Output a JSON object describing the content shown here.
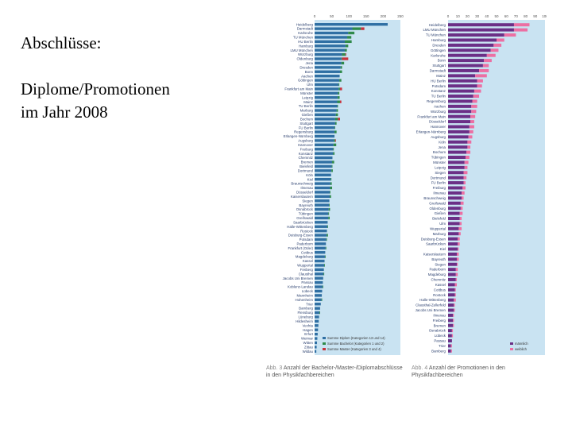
{
  "slide": {
    "title_line1": "Abschlüsse:",
    "title_line2": "Diplome/Promotionen",
    "title_line3": "im Jahr 2008"
  },
  "colors": {
    "panel_bg": "#c9e3f2",
    "diplom": "#2f6fa3",
    "bachelor": "#2f8a4a",
    "master": "#c8323c",
    "maennlich": "#6b2f86",
    "weiblich": "#ec6fa3"
  },
  "chart_data": [
    {
      "type": "bar",
      "orientation": "horizontal",
      "stacked": true,
      "caption_number": "Abb. 3",
      "caption": "Anzahl der Bachelor-/Master-/Diplomabschlüsse in den Physikfachbereichen",
      "xlim": [
        0,
        250
      ],
      "xticks": [
        "0",
        "50",
        "100",
        "150",
        "200",
        "250"
      ],
      "grid": false,
      "legend_position": "bottom-right",
      "series": [
        {
          "name": "Summe Diplom (Kategorien 13 und 14)",
          "values": [
            213,
            110,
            98,
            95,
            88,
            90,
            88,
            80,
            78,
            78,
            76,
            74,
            73,
            72,
            70,
            70,
            68,
            67,
            66,
            66,
            64,
            62,
            60,
            60,
            58,
            58,
            58,
            56,
            55,
            54,
            54,
            52,
            51,
            50,
            49,
            48,
            47,
            46,
            45,
            44,
            44,
            43,
            42,
            41,
            40,
            40,
            38,
            37,
            36,
            35,
            34,
            33,
            32,
            31,
            30,
            29,
            28,
            27,
            26,
            25,
            24,
            23,
            22,
            21,
            20,
            18,
            16,
            14,
            13,
            12,
            11,
            10,
            9,
            8,
            7,
            6,
            5
          ]
        },
        {
          "name": "Summe Bachelor (Kategorien 1 und 2)",
          "values": [
            0,
            25,
            18,
            12,
            20,
            8,
            6,
            10,
            2,
            8,
            4,
            6,
            0,
            6,
            2,
            4,
            4,
            6,
            8,
            2,
            4,
            6,
            8,
            4,
            2,
            6,
            0,
            4,
            8,
            2,
            4,
            0,
            6,
            2,
            4,
            0,
            2,
            4,
            6,
            2,
            4,
            0,
            2,
            4,
            2,
            4,
            0,
            2,
            0,
            4,
            2,
            0,
            2,
            0,
            2,
            0,
            2,
            0,
            2,
            0,
            0,
            2,
            0,
            0,
            2,
            0,
            0,
            2,
            0,
            0,
            0,
            0,
            0,
            0,
            0,
            0,
            0
          ]
        },
        {
          "name": "Summe Master (Kategorien 3 und 4)",
          "values": [
            0,
            10,
            0,
            0,
            0,
            0,
            0,
            2,
            18,
            0,
            0,
            0,
            0,
            0,
            0,
            6,
            0,
            0,
            4,
            0,
            0,
            0,
            6,
            0,
            0,
            0,
            0,
            2,
            0,
            0,
            0,
            0,
            0,
            0,
            0,
            0,
            0,
            0,
            0,
            0,
            0,
            0,
            0,
            0,
            0,
            0,
            0,
            0,
            0,
            0,
            0,
            0,
            0,
            0,
            0,
            0,
            0,
            0,
            0,
            0,
            0,
            0,
            0,
            0,
            0,
            0,
            0,
            0,
            0,
            0,
            0,
            0,
            0,
            0,
            0,
            0,
            0
          ]
        }
      ],
      "legend_entries": [
        "Summe Diplom (Kategorien 13 und 14)",
        "Summe Bachelor (Kategorien 1 und 2)",
        "Summe Master (Kategorien 3 und 4)"
      ],
      "categories": [
        "Heidelberg",
        "Darmstadt",
        "Karlsruhe",
        "TU München",
        "HU Berlin",
        "Hamburg",
        "LMU München",
        "Würzburg",
        "Oldenburg",
        "Jena",
        "Dresden",
        "Bonn",
        "Aachen",
        "Göttingen",
        "Ulm",
        "Frankfurt am Main",
        "Münster",
        "Leipzig",
        "Mainz",
        "TU Berlin",
        "Marburg",
        "Gießen",
        "Bochum",
        "Stuttgart",
        "FU Berlin",
        "Regensburg",
        "Erlangen-Nürnberg",
        "Augsburg",
        "Hannover",
        "Freiburg",
        "Konstanz",
        "Chemnitz",
        "Bremen",
        "Bielefeld",
        "Dortmund",
        "Köln",
        "Kiel",
        "Braunschweig",
        "Ilmenau",
        "Düsseldorf",
        "Kaiserslautern",
        "Siegen",
        "Bayreuth",
        "Osnabrück",
        "Tübingen",
        "Greifswald",
        "Saarbrücken",
        "Halle-Wittenberg",
        "Rostock",
        "Duisburg-Essen",
        "Potsdam",
        "Paderborn",
        "Frankfurt (Oder)",
        "Cottbus",
        "Magdeburg",
        "Kassel",
        "Wuppertal",
        "Freiberg",
        "Clausthal",
        "Jacobs Uni Bremen",
        "Passau",
        "Koblenz-Landau",
        "Lübeck",
        "Mannheim",
        "Hohenheim",
        "Trier",
        "Bamberg",
        "Flensburg",
        "Lüneburg",
        "Hildesheim",
        "Vechta",
        "Hagen",
        "Erfurt",
        "Weimar",
        "Witten",
        "Zittau",
        "Wildau"
      ]
    },
    {
      "type": "bar",
      "orientation": "horizontal",
      "stacked": true,
      "caption_number": "Abb. 4",
      "caption": "Anzahl der Promotionen in den Physikfachbereichen",
      "xlim": [
        0,
        100
      ],
      "xticks": [
        "0",
        "10",
        "20",
        "30",
        "40",
        "50",
        "60",
        "70",
        "80",
        "90",
        "100"
      ],
      "grid": false,
      "legend_position": "bottom-right",
      "series": [
        {
          "name": "männlich",
          "values": [
            68,
            68,
            58,
            50,
            47,
            44,
            40,
            37,
            36,
            32,
            28,
            30,
            30,
            27,
            26,
            25,
            24,
            24,
            23,
            23,
            22,
            22,
            21,
            20,
            20,
            19,
            18,
            17,
            17,
            16,
            16,
            16,
            15,
            14,
            14,
            13,
            13,
            12,
            12,
            12,
            11,
            11,
            10,
            10,
            10,
            9,
            9,
            9,
            8,
            8,
            8,
            7,
            7,
            7,
            6,
            6,
            6,
            5,
            5,
            5,
            4,
            4,
            4,
            3,
            3
          ]
        },
        {
          "name": "weiblich",
          "values": [
            16,
            14,
            12,
            8,
            8,
            8,
            9,
            8,
            6,
            10,
            12,
            6,
            5,
            7,
            6,
            5,
            6,
            5,
            5,
            4,
            5,
            4,
            4,
            4,
            3,
            4,
            4,
            4,
            3,
            4,
            3,
            2,
            3,
            3,
            2,
            3,
            2,
            3,
            2,
            2,
            3,
            2,
            2,
            2,
            1,
            2,
            2,
            1,
            2,
            2,
            1,
            2,
            1,
            1,
            2,
            1,
            1,
            1,
            1,
            1,
            1,
            1,
            0,
            1,
            1
          ]
        }
      ],
      "legend_entries": [
        "männlich",
        "weiblich"
      ],
      "categories": [
        "Heidelberg",
        "LMU München",
        "TU München",
        "Hamburg",
        "Dresden",
        "Göttingen",
        "Karlsruhe",
        "Bonn",
        "Stuttgart",
        "Darmstadt",
        "Mainz",
        "HU Berlin",
        "Potsdam",
        "Konstanz",
        "TU Berlin",
        "Regensburg",
        "Aachen",
        "Würzburg",
        "Frankfurt am Main",
        "Düsseldorf",
        "Hannover",
        "Erlangen-Nürnberg",
        "Augsburg",
        "Köln",
        "Jena",
        "Bochum",
        "Tübingen",
        "Münster",
        "Leipzig",
        "Siegen",
        "Dortmund",
        "FU Berlin",
        "Freiburg",
        "Ilmenau",
        "Braunschweig",
        "Greifswald",
        "Oldenburg",
        "Gießen",
        "Bielefeld",
        "Ulm",
        "Wuppertal",
        "Marburg",
        "Duisburg-Essen",
        "Saarbrücken",
        "Kiel",
        "Kaiserslautern",
        "Bayreuth",
        "Siegen",
        "Paderborn",
        "Magdeburg",
        "Chemnitz",
        "Kassel",
        "Cottbus",
        "Rostock",
        "Halle-Wittenberg",
        "Clausthal-Zellerfeld",
        "Jacobs Uni Bremen",
        "Ilmenau",
        "Freiberg",
        "Bremen",
        "Osnabrück",
        "Lübeck",
        "Passau",
        "Trier",
        "Bamberg"
      ]
    }
  ]
}
